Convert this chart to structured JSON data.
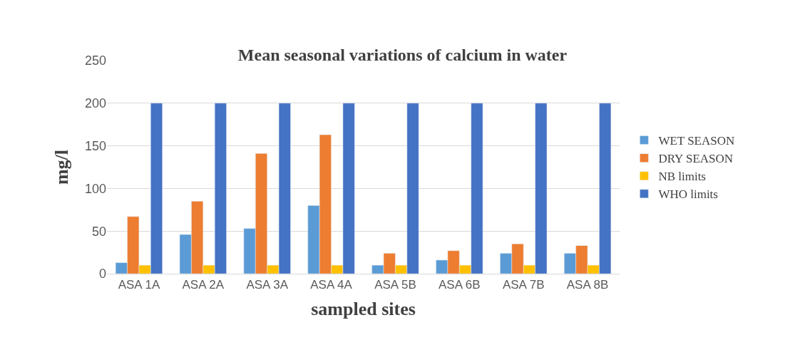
{
  "chart_data": {
    "type": "bar",
    "title": "Mean seasonal variations of calcium in water",
    "xlabel": "sampled sites",
    "ylabel": "mg/l",
    "categories": [
      "ASA 1A",
      "ASA 2A",
      "ASA 3A",
      "ASA 4A",
      "ASA 5B",
      "ASA 6B",
      "ASA 7B",
      "ASA 8B"
    ],
    "series": [
      {
        "name": "WET SEASON",
        "color": "#5b9bd5",
        "values": [
          13,
          46,
          53,
          80,
          10,
          16,
          24,
          24
        ]
      },
      {
        "name": "DRY SEASON",
        "color": "#ed7d31",
        "values": [
          67,
          85,
          141,
          163,
          24,
          27,
          35,
          33
        ]
      },
      {
        "name": "NB limits",
        "color": "#ffc000",
        "values": [
          10,
          10,
          10,
          10,
          10,
          10,
          10,
          10
        ]
      },
      {
        "name": "WHO limits",
        "color": "#4472c4",
        "values": [
          200,
          200,
          200,
          200,
          200,
          200,
          200,
          200
        ]
      }
    ],
    "ylim": [
      0,
      250
    ],
    "yticks": [
      0,
      50,
      100,
      150,
      200,
      250
    ],
    "grid": "y",
    "legend": "right"
  }
}
